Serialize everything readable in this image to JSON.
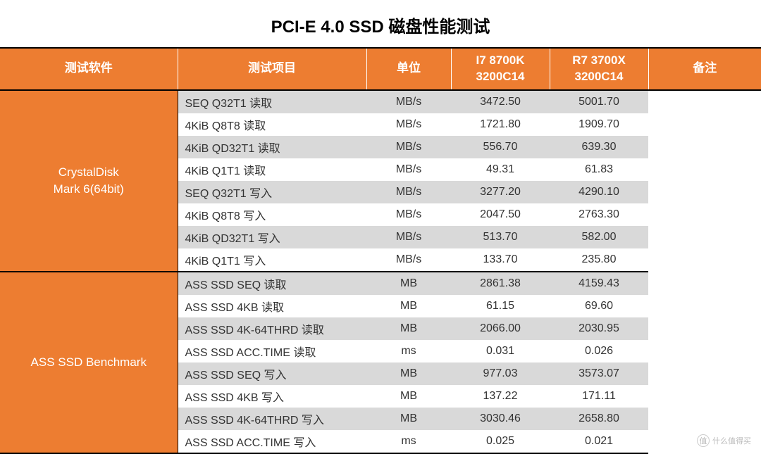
{
  "title": "PCI-E 4.0 SSD 磁盘性能测试",
  "columns": {
    "software": "测试软件",
    "item": "测试项目",
    "unit": "单位",
    "cpu1": "I7 8700K\n3200C14",
    "cpu2": "R7 3700X\n3200C14",
    "remark": "备注"
  },
  "col_widths": {
    "software": 252,
    "item": 268,
    "unit": 120,
    "cpu1": 140,
    "cpu2": 140,
    "remark": 160
  },
  "groups": [
    {
      "name": "CrystalDisk\nMark 6(64bit)",
      "rows": [
        {
          "item": "SEQ Q32T1 读取",
          "unit": "MB/s",
          "v1": "3472.50",
          "v2": "5001.70"
        },
        {
          "item": "4KiB Q8T8 读取",
          "unit": "MB/s",
          "v1": "1721.80",
          "v2": "1909.70"
        },
        {
          "item": "4KiB QD32T1 读取",
          "unit": "MB/s",
          "v1": "556.70",
          "v2": "639.30"
        },
        {
          "item": "4KiB Q1T1 读取",
          "unit": "MB/s",
          "v1": "49.31",
          "v2": "61.83"
        },
        {
          "item": "SEQ Q32T1 写入",
          "unit": "MB/s",
          "v1": "3277.20",
          "v2": "4290.10"
        },
        {
          "item": "4KiB Q8T8 写入",
          "unit": "MB/s",
          "v1": "2047.50",
          "v2": "2763.30"
        },
        {
          "item": "4KiB QD32T1 写入",
          "unit": "MB/s",
          "v1": "513.70",
          "v2": "582.00"
        },
        {
          "item": "4KiB Q1T1 写入",
          "unit": "MB/s",
          "v1": "133.70",
          "v2": "235.80"
        }
      ]
    },
    {
      "name": "ASS SSD Benchmark",
      "rows": [
        {
          "item": "ASS SSD SEQ 读取",
          "unit": "MB",
          "v1": "2861.38",
          "v2": "4159.43"
        },
        {
          "item": "ASS SSD 4KB 读取",
          "unit": "MB",
          "v1": "61.15",
          "v2": "69.60"
        },
        {
          "item": "ASS SSD 4K-64THRD 读取",
          "unit": "MB",
          "v1": "2066.00",
          "v2": "2030.95"
        },
        {
          "item": "ASS SSD ACC.TIME 读取",
          "unit": "ms",
          "v1": "0.031",
          "v2": "0.026"
        },
        {
          "item": "ASS SSD SEQ 写入",
          "unit": "MB",
          "v1": "977.03",
          "v2": "3573.07"
        },
        {
          "item": "ASS SSD 4KB 写入",
          "unit": "MB",
          "v1": "137.22",
          "v2": "171.11"
        },
        {
          "item": "ASS SSD 4K-64THRD 写入",
          "unit": "MB",
          "v1": "3030.46",
          "v2": "2658.80"
        },
        {
          "item": "ASS SSD ACC.TIME 写入",
          "unit": "ms",
          "v1": "0.025",
          "v2": "0.021"
        }
      ]
    }
  ],
  "colors": {
    "header_bg": "#ed7d31",
    "header_text": "#ffffff",
    "stripe_gray": "#d9d9d9",
    "stripe_white": "#ffffff",
    "border": "#000000",
    "text": "#333333"
  },
  "watermark": "什么值得买"
}
